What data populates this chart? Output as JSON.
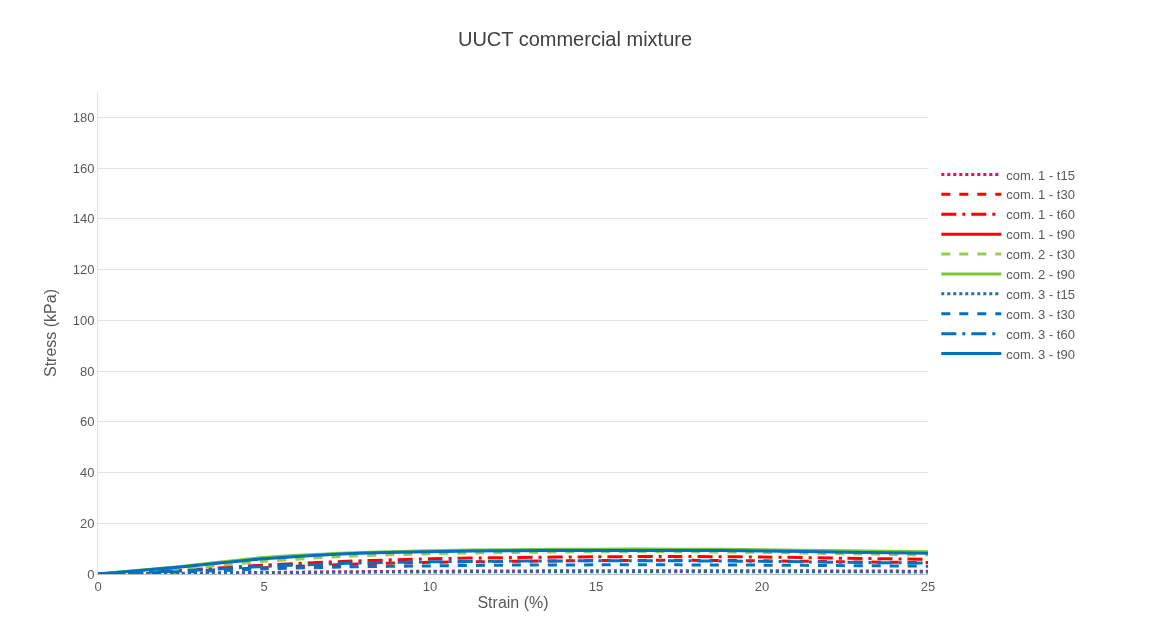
{
  "chart_data": {
    "type": "line",
    "title": "UUCT commercial mixture",
    "xlabel": "Strain (%)",
    "ylabel": "Stress (kPa)",
    "x": [
      0,
      2.5,
      5,
      7.5,
      10,
      12.5,
      15,
      17.5,
      20,
      22.5,
      25
    ],
    "xlim": [
      0,
      25
    ],
    "xticks": [
      0,
      5,
      10,
      15,
      20,
      25
    ],
    "ylim": [
      0,
      190
    ],
    "yticks": [
      0,
      20,
      40,
      60,
      80,
      100,
      120,
      140,
      160,
      180
    ],
    "grid": "y",
    "legend": "right",
    "marker": "none",
    "series": [
      {
        "name": "com. 1 - t15",
        "color": "#ff0066",
        "line_style": "dotted",
        "values": [
          0,
          0.3,
          0.6,
          0.9,
          1.1,
          1.2,
          1.3,
          1.3,
          1.3,
          1.2,
          1.1
        ]
      },
      {
        "name": "com. 1 - t30",
        "color": "#ff0000",
        "line_style": "dashed",
        "values": [
          0,
          1,
          2.5,
          3.8,
          4.6,
          5,
          5.3,
          5.4,
          5.2,
          4.8,
          4.5
        ]
      },
      {
        "name": "com. 1 - t60",
        "color": "#ff0000",
        "line_style": "dashdot",
        "values": [
          0,
          1.5,
          3.5,
          5,
          6,
          6.5,
          6.8,
          6.9,
          6.7,
          6.2,
          5.8
        ]
      },
      {
        "name": "com. 1 - t90",
        "color": "#ff0000",
        "line_style": "solid",
        "values": [
          null,
          null,
          null,
          null,
          null,
          null,
          null,
          null,
          null,
          null,
          null
        ]
      },
      {
        "name": "com. 2 - t30",
        "color": "#92d050",
        "line_style": "dashed",
        "values": [
          0,
          2,
          5,
          7,
          8,
          8.5,
          8.8,
          8.8,
          8.5,
          8,
          7.5
        ]
      },
      {
        "name": "com. 2 - t90",
        "color": "#7ec636",
        "line_style": "solid",
        "values": [
          0,
          3,
          6.5,
          8.3,
          9.2,
          9.6,
          9.8,
          9.8,
          9.6,
          9.2,
          8.8
        ]
      },
      {
        "name": "com. 3 - t15",
        "color": "#1f6f9f",
        "line_style": "dotted",
        "values": [
          0,
          0.2,
          0.5,
          0.7,
          0.8,
          0.9,
          0.9,
          0.9,
          0.9,
          0.9,
          0.8
        ]
      },
      {
        "name": "com. 3 - t30",
        "color": "#0070c0",
        "line_style": "dashed",
        "values": [
          0,
          0.8,
          2,
          2.8,
          3.2,
          3.5,
          3.6,
          3.6,
          3.5,
          3.3,
          3.1
        ]
      },
      {
        "name": "com. 3 - t60",
        "color": "#0070c0",
        "line_style": "dashdot",
        "values": [
          0,
          1.2,
          3,
          4.2,
          4.8,
          5.1,
          5.2,
          5.2,
          5,
          4.6,
          4.3
        ]
      },
      {
        "name": "com. 3 - t90",
        "color": "#0070c0",
        "line_style": "solid",
        "values": [
          0,
          2.8,
          6,
          8,
          8.8,
          9.2,
          9.3,
          9.3,
          9.1,
          8.6,
          8.2
        ]
      }
    ]
  }
}
